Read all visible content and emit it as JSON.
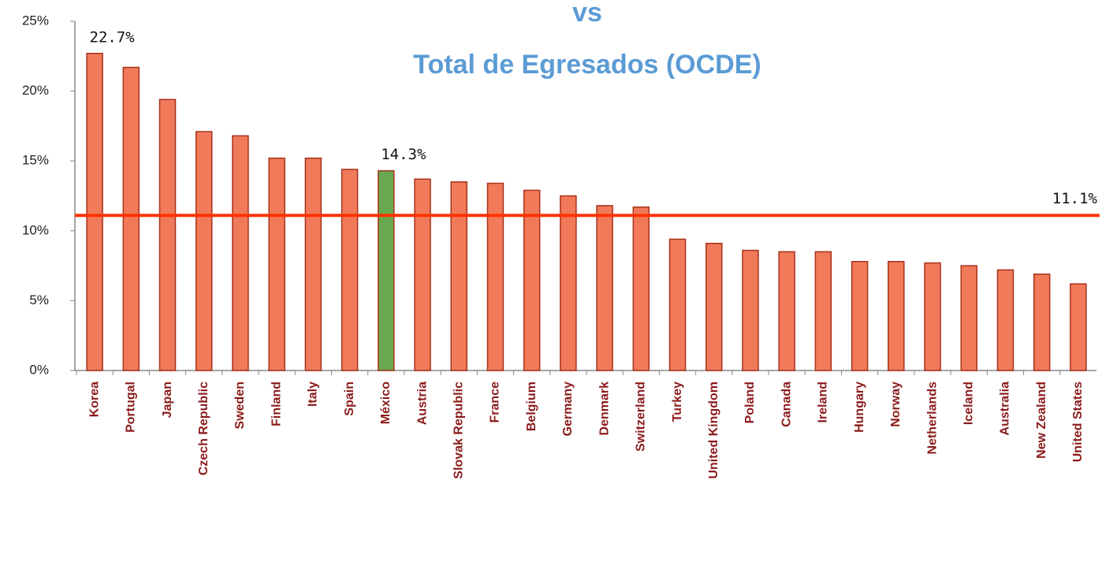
{
  "chart_data": {
    "type": "bar",
    "title": [
      "vs",
      "Total de Egresados (OCDE)"
    ],
    "categories": [
      "Korea",
      "Portugal",
      "Japan",
      "Czech Republic",
      "Sweden",
      "Finland",
      "Italy",
      "Spain",
      "México",
      "Austria",
      "Slovak Republic",
      "France",
      "Belgium",
      "Germany",
      "Denmark",
      "Switzerland",
      "Turkey",
      "United Kingdom",
      "Poland",
      "Canada",
      "Ireland",
      "Hungary",
      "Norway",
      "Netherlands",
      "Iceland",
      "Australia",
      "New Zealand",
      "United States"
    ],
    "values": [
      22.7,
      21.7,
      19.4,
      17.1,
      16.8,
      15.2,
      15.2,
      14.4,
      14.3,
      13.7,
      13.5,
      13.4,
      12.9,
      12.5,
      11.8,
      11.7,
      9.4,
      9.1,
      8.6,
      8.5,
      8.5,
      7.8,
      7.8,
      7.7,
      7.5,
      7.2,
      6.9,
      6.2
    ],
    "value_labels": [
      "22.7%",
      null,
      null,
      null,
      null,
      null,
      null,
      null,
      "14.3%",
      null,
      null,
      null,
      null,
      null,
      null,
      null,
      null,
      null,
      null,
      null,
      null,
      null,
      null,
      null,
      null,
      null,
      null,
      null
    ],
    "colors": [
      "#f07a5a",
      "#f07a5a",
      "#f07a5a",
      "#f07a5a",
      "#f07a5a",
      "#f07a5a",
      "#f07a5a",
      "#f07a5a",
      "#6aa84f",
      "#f07a5a",
      "#f07a5a",
      "#f07a5a",
      "#f07a5a",
      "#f07a5a",
      "#f07a5a",
      "#f07a5a",
      "#f07a5a",
      "#f07a5a",
      "#f07a5a",
      "#f07a5a",
      "#f07a5a",
      "#f07a5a",
      "#f07a5a",
      "#f07a5a",
      "#f07a5a",
      "#f07a5a",
      "#f07a5a",
      "#f07a5a"
    ],
    "reference_line": {
      "value": 11.1,
      "label": "11.1%",
      "color": "#ff3300"
    },
    "ylim": [
      0,
      25
    ],
    "yticks": [
      {
        "value": 0,
        "label": "0%"
      },
      {
        "value": 5,
        "label": "5%"
      },
      {
        "value": 10,
        "label": "10%"
      },
      {
        "value": 15,
        "label": "15%"
      },
      {
        "value": 20,
        "label": "20%"
      },
      {
        "value": 25,
        "label": "25%"
      }
    ]
  }
}
